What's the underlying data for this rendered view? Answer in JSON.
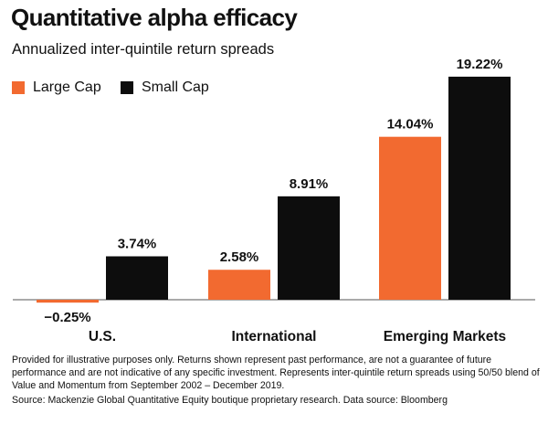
{
  "title": "Quantitative alpha efficacy",
  "subtitle": "Annualized inter-quintile return spreads",
  "colors": {
    "large_cap": "#f26a30",
    "small_cap": "#0d0d0d",
    "axis": "#555555"
  },
  "legend": [
    {
      "label": "Large Cap"
    },
    {
      "label": "Small Cap"
    }
  ],
  "chart_data": {
    "type": "bar",
    "title": "Quantitative alpha efficacy",
    "subtitle": "Annualized inter-quintile return spreads",
    "categories": [
      "U.S.",
      "International",
      "Emerging Markets"
    ],
    "series": [
      {
        "name": "Large Cap",
        "values": [
          -0.25,
          2.58,
          14.04
        ],
        "labels": [
          "−0.25%",
          "2.58%",
          "14.04%"
        ]
      },
      {
        "name": "Small Cap",
        "values": [
          3.74,
          8.91,
          19.22
        ],
        "labels": [
          "3.74%",
          "8.91%",
          "19.22%"
        ]
      }
    ],
    "ylim": [
      -0.5,
      20
    ],
    "legend": "top-left",
    "grid": false
  },
  "footnote": "Provided for illustrative purposes only. Returns shown represent past performance, are not a guarantee of future performance and are not indicative of any specific investment. Represents inter-quintile return spreads using 50/50 blend of Value and Momentum from September 2002 – December 2019.",
  "source": "Source: Mackenzie Global Quantitative Equity boutique proprietary research. Data source: Bloomberg"
}
